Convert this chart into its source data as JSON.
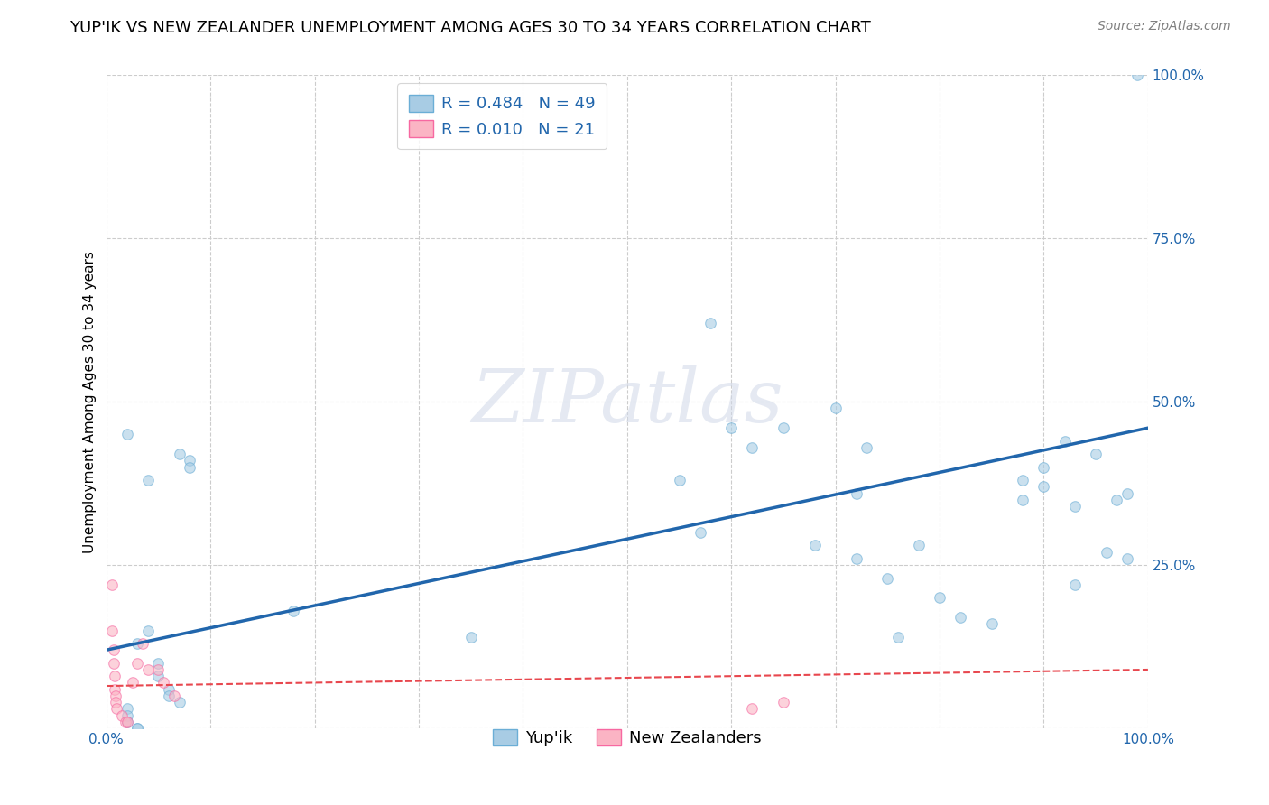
{
  "title": "YUP'IK VS NEW ZEALANDER UNEMPLOYMENT AMONG AGES 30 TO 34 YEARS CORRELATION CHART",
  "source": "Source: ZipAtlas.com",
  "ylabel": "Unemployment Among Ages 30 to 34 years",
  "xlim": [
    0.0,
    1.0
  ],
  "ylim": [
    0.0,
    1.0
  ],
  "xticks": [
    0.0,
    0.1,
    0.2,
    0.3,
    0.4,
    0.5,
    0.6,
    0.7,
    0.8,
    0.9,
    1.0
  ],
  "yticks": [
    0.0,
    0.25,
    0.5,
    0.75,
    1.0
  ],
  "xticklabels": [
    "0.0%",
    "",
    "",
    "",
    "",
    "",
    "",
    "",
    "",
    "",
    "100.0%"
  ],
  "right_yticklabels": [
    "",
    "25.0%",
    "50.0%",
    "75.0%",
    "100.0%"
  ],
  "background_color": "#ffffff",
  "grid_color": "#cccccc",
  "watermark_text": "ZIPatlas",
  "legend_R1": "R = 0.484",
  "legend_N1": "N = 49",
  "legend_R2": "R = 0.010",
  "legend_N2": "N = 21",
  "blue_scatter_x": [
    0.02,
    0.04,
    0.07,
    0.08,
    0.08,
    0.03,
    0.05,
    0.05,
    0.06,
    0.06,
    0.07,
    0.02,
    0.02,
    0.02,
    0.03,
    0.03,
    0.04,
    0.18,
    0.35,
    0.55,
    0.57,
    0.58,
    0.6,
    0.62,
    0.65,
    0.68,
    0.7,
    0.72,
    0.72,
    0.73,
    0.75,
    0.76,
    0.78,
    0.8,
    0.82,
    0.85,
    0.88,
    0.88,
    0.9,
    0.9,
    0.92,
    0.93,
    0.93,
    0.95,
    0.96,
    0.97,
    0.98,
    0.98,
    0.99
  ],
  "blue_scatter_y": [
    0.45,
    0.38,
    0.42,
    0.41,
    0.4,
    0.13,
    0.1,
    0.08,
    0.06,
    0.05,
    0.04,
    0.03,
    0.02,
    0.01,
    0.0,
    0.0,
    0.15,
    0.18,
    0.14,
    0.38,
    0.3,
    0.62,
    0.46,
    0.43,
    0.46,
    0.28,
    0.49,
    0.36,
    0.26,
    0.43,
    0.23,
    0.14,
    0.28,
    0.2,
    0.17,
    0.16,
    0.38,
    0.35,
    0.37,
    0.4,
    0.44,
    0.34,
    0.22,
    0.42,
    0.27,
    0.35,
    0.36,
    0.26,
    1.0
  ],
  "pink_scatter_x": [
    0.005,
    0.005,
    0.007,
    0.007,
    0.008,
    0.008,
    0.009,
    0.009,
    0.01,
    0.015,
    0.018,
    0.02,
    0.025,
    0.03,
    0.035,
    0.04,
    0.05,
    0.055,
    0.065,
    0.62,
    0.65
  ],
  "pink_scatter_y": [
    0.22,
    0.15,
    0.12,
    0.1,
    0.08,
    0.06,
    0.05,
    0.04,
    0.03,
    0.02,
    0.01,
    0.01,
    0.07,
    0.1,
    0.13,
    0.09,
    0.09,
    0.07,
    0.05,
    0.03,
    0.04
  ],
  "blue_line_x": [
    0.0,
    1.0
  ],
  "blue_line_y": [
    0.12,
    0.46
  ],
  "pink_line_x": [
    0.0,
    1.0
  ],
  "pink_line_y": [
    0.065,
    0.09
  ],
  "blue_color": "#a8cce4",
  "blue_edge_color": "#6baed6",
  "blue_line_color": "#2166ac",
  "pink_color": "#fbb4c4",
  "pink_edge_color": "#f768a1",
  "pink_line_color": "#e8474e",
  "marker_size": 70,
  "marker_alpha": 0.6,
  "title_fontsize": 13,
  "label_fontsize": 11,
  "tick_fontsize": 11,
  "legend_fontsize": 13,
  "source_fontsize": 10
}
